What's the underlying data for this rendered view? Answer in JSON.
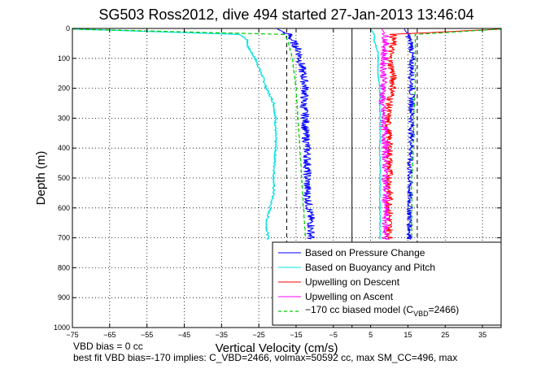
{
  "chart_data": {
    "type": "line",
    "title": "SG503 Ross2012, dive 494 started 27-Jan-2013 13:46:04",
    "xlabel": "Vertical Velocity (cm/s)",
    "ylabel": "Depth (m)",
    "xlim": [
      -75,
      40
    ],
    "ylim": [
      0,
      1000
    ],
    "y_reversed": true,
    "grid": true,
    "legend_position": "bottom-right",
    "x_ticks": [
      -75,
      -65,
      -55,
      -45,
      -35,
      -25,
      -15,
      -5,
      5,
      15,
      25,
      35
    ],
    "y_ticks": [
      0,
      100,
      200,
      300,
      400,
      500,
      600,
      700,
      800,
      900,
      1000
    ],
    "reference_lines": [
      {
        "x": -17.5,
        "style": "dashed",
        "color": "#000000"
      },
      {
        "x": 0,
        "style": "solid",
        "color": "#000000"
      },
      {
        "x": 17.5,
        "style": "dashed",
        "color": "#000000"
      }
    ],
    "series": [
      {
        "name": "Based on Pressure Change",
        "color": "#0000ff",
        "depth": [
          2,
          20,
          40,
          60,
          80,
          100,
          130,
          160,
          200,
          250,
          300,
          350,
          400,
          450,
          500,
          550,
          600,
          650,
          700,
          705
        ],
        "descent_velocity": [
          -20,
          -17,
          -16,
          -15,
          -14,
          -14,
          -13.5,
          -13,
          -12.5,
          -13,
          -12.5,
          -12.5,
          -12,
          -12,
          -12,
          -12,
          -11.5,
          -11,
          -11,
          -11
        ],
        "ascent_velocity": [
          14,
          15,
          15.5,
          16,
          16,
          16,
          16,
          16,
          16,
          16,
          16,
          16,
          16,
          15.5,
          15.5,
          15.5,
          15.5,
          15.5,
          15.5,
          15.5
        ]
      },
      {
        "name": "Based on Buoyancy and Pitch",
        "color": "#00e0e0",
        "depth": [
          2,
          20,
          40,
          60,
          80,
          100,
          130,
          160,
          200,
          250,
          300,
          400,
          500,
          550,
          600,
          650,
          700,
          705
        ],
        "descent_velocity": [
          -75,
          -30,
          -28,
          -28,
          -27,
          -26,
          -25,
          -24,
          -23,
          -21,
          -20.5,
          -20.5,
          -21,
          -21,
          -22,
          -23,
          -22.5,
          -22.5
        ],
        "ascent_velocity": [
          5,
          6,
          6,
          6.5,
          7,
          7,
          7,
          7,
          7.5,
          7.5,
          7.5,
          7.5,
          7.5,
          7.5,
          7.5,
          7.5,
          7.5,
          7.5
        ]
      },
      {
        "name": "Upwelling on Descent",
        "color": "#ff0000",
        "depth": [
          2,
          20,
          50,
          100,
          150,
          200,
          250,
          300,
          400,
          500,
          600,
          700,
          705
        ],
        "velocity": [
          40,
          11,
          11,
          10,
          11,
          11,
          10,
          9.5,
          10,
          10,
          10,
          10,
          10
        ]
      },
      {
        "name": "Upwelling on Ascent",
        "color": "#ff00ff",
        "depth": [
          2,
          20,
          50,
          100,
          150,
          200,
          250,
          300,
          400,
          500,
          600,
          700,
          705
        ],
        "velocity": [
          8,
          9,
          9,
          8.5,
          8.5,
          8.5,
          8,
          8.5,
          9,
          9,
          9,
          9,
          9
        ]
      },
      {
        "name": "-170 cc biased model (C_VBD=2466)",
        "color": "#00cc00",
        "style": "dashed",
        "depth": [
          2,
          20,
          50,
          100,
          200,
          300,
          400,
          500,
          600,
          700,
          705
        ],
        "descent_velocity": [
          -75,
          -18,
          -17,
          -16,
          -15,
          -14.5,
          -14,
          -13.5,
          -13,
          -12.5,
          -12.5
        ],
        "ascent_velocity": [
          40,
          17,
          17,
          17,
          17,
          16.5,
          16.5,
          16,
          16,
          16,
          16
        ]
      }
    ]
  },
  "legend": {
    "items": [
      {
        "label": "Based on Pressure Change",
        "color": "#0000ff",
        "dashed": false
      },
      {
        "label": "Based on Buoyancy and Pitch",
        "color": "#00e0e0",
        "dashed": false
      },
      {
        "label": "Upwelling on Descent",
        "color": "#ff0000",
        "dashed": false
      },
      {
        "label": "Upwelling on Ascent",
        "color": "#ff00ff",
        "dashed": false
      },
      {
        "label": "−170 cc biased model (C",
        "sub": "VBD",
        "suffix": "=2466)",
        "color": "#00cc00",
        "dashed": true
      }
    ]
  },
  "footnotes": {
    "line1": "VBD bias = 0 cc",
    "line2": "best fit VBD bias=-170 implies: C_VBD=2466, volmax=50592 cc, max SM_CC=496, max"
  }
}
